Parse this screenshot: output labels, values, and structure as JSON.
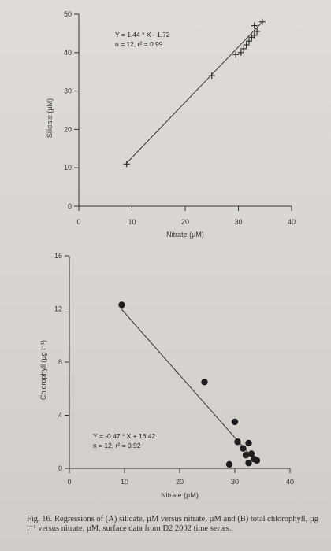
{
  "chart_data": [
    {
      "type": "scatter",
      "panel": "A",
      "xlabel": "Nitrate (µM)",
      "ylabel": "Silicate (µM)",
      "xlim": [
        0,
        40
      ],
      "ylim": [
        0,
        50
      ],
      "x_ticks": [
        0,
        10,
        20,
        30,
        40
      ],
      "y_ticks": [
        0,
        10,
        20,
        30,
        40,
        50
      ],
      "marker": "plus",
      "points": [
        {
          "x": 9,
          "y": 11
        },
        {
          "x": 25,
          "y": 34
        },
        {
          "x": 29.5,
          "y": 39.5
        },
        {
          "x": 30.5,
          "y": 40
        },
        {
          "x": 31,
          "y": 41
        },
        {
          "x": 31.5,
          "y": 42
        },
        {
          "x": 32,
          "y": 43
        },
        {
          "x": 32.5,
          "y": 44
        },
        {
          "x": 33,
          "y": 44.5
        },
        {
          "x": 33.5,
          "y": 45.5
        },
        {
          "x": 33,
          "y": 47
        },
        {
          "x": 34.5,
          "y": 48
        }
      ],
      "fit": {
        "slope": 1.44,
        "intercept": -1.72,
        "x_range": [
          9,
          34.5
        ]
      },
      "annotation_line1": "Y = 1.44 * X - 1.72",
      "annotation_line2": "n = 12, r² = 0.99"
    },
    {
      "type": "scatter",
      "panel": "B",
      "xlabel": "Nitrate (µM)",
      "ylabel": "Chlorophyll (µg l⁻¹)",
      "xlim": [
        0,
        40
      ],
      "ylim": [
        0,
        16
      ],
      "x_ticks": [
        0,
        10,
        20,
        30,
        40
      ],
      "y_ticks": [
        0,
        4,
        8,
        12,
        16
      ],
      "marker": "dot",
      "points": [
        {
          "x": 9.5,
          "y": 12.3
        },
        {
          "x": 24.5,
          "y": 6.5
        },
        {
          "x": 30,
          "y": 3.5
        },
        {
          "x": 30.5,
          "y": 2.0
        },
        {
          "x": 31.5,
          "y": 1.5
        },
        {
          "x": 32.5,
          "y": 1.9
        },
        {
          "x": 32,
          "y": 1.0
        },
        {
          "x": 33,
          "y": 1.1
        },
        {
          "x": 34,
          "y": 0.6
        },
        {
          "x": 32.5,
          "y": 0.4
        },
        {
          "x": 29,
          "y": 0.3
        },
        {
          "x": 33.5,
          "y": 0.7
        }
      ],
      "fit": {
        "slope": -0.47,
        "intercept": 16.42,
        "x_range": [
          9.5,
          34
        ]
      },
      "annotation_line1": "Y = -0.47 * X + 16.42",
      "annotation_line2": "n = 12, r² = 0.92"
    }
  ],
  "caption": "Fig. 16. Regressions of (A) silicate, µM versus nitrate, µM and (B) total chlorophyll, µg l⁻¹ versus nitrate, µM, surface data from D2 2002 time series."
}
